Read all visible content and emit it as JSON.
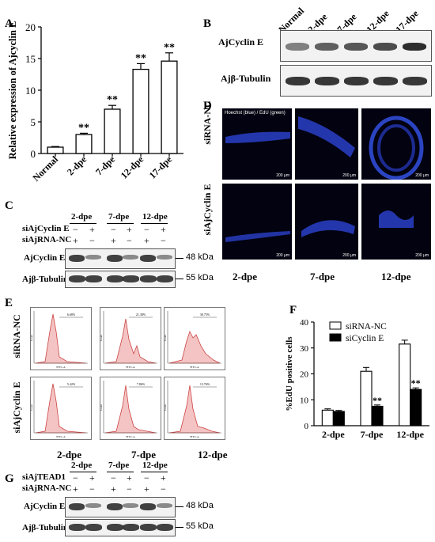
{
  "panels": {
    "A": "A",
    "B": "B",
    "C": "C",
    "D": "D",
    "E": "E",
    "F": "F",
    "G": "G"
  },
  "panelA": {
    "chart_data": {
      "type": "bar",
      "categories": [
        "Normal",
        "2-dpe",
        "7-dpe",
        "12-dpe",
        "17-dpe"
      ],
      "values": [
        1.0,
        3.0,
        7.0,
        13.3,
        14.6
      ],
      "errors": [
        0.1,
        0.2,
        0.6,
        0.9,
        1.3
      ],
      "significance": [
        "",
        "**",
        "**",
        "**",
        "**"
      ],
      "ylabel": "Relative expression of Ajcyclin E",
      "ylim": [
        0,
        20
      ],
      "yticks": [
        "0",
        "5",
        "10",
        "15",
        "20"
      ]
    }
  },
  "panelB": {
    "lanes": [
      "Normal",
      "2-dpe",
      "7-dpe",
      "12-dpe",
      "17-dpe"
    ],
    "rows": [
      "AjCyclin E",
      "Ajβ-Tubulin"
    ],
    "cyclin_intensity": [
      0.55,
      0.7,
      0.75,
      0.8,
      0.95
    ]
  },
  "panelC": {
    "groups": [
      "2-dpe",
      "7-dpe",
      "12-dpe"
    ],
    "row_labels": [
      "siAjCyclin E",
      "siAjRNA-NC"
    ],
    "row1_signs": [
      "−",
      "+",
      "−",
      "+",
      "−",
      "+"
    ],
    "row2_signs": [
      "+",
      "−",
      "+",
      "−",
      "+",
      "−"
    ],
    "blot_labels": [
      "AjCyclin E",
      "Ajβ-Tubulin"
    ],
    "kda": [
      "48 kDa",
      "55 kDa"
    ]
  },
  "panelD": {
    "header": "Hoechst (blue) / EdU (green)",
    "row_labels": [
      "siRNA-NC",
      "siAjCyclin E"
    ],
    "col_labels": [
      "2-dpe",
      "7-dpe",
      "12-dpe"
    ],
    "scale": "200 μm"
  },
  "panelE": {
    "row_labels": [
      "siRNA-NC",
      "siAjCyclin E"
    ],
    "col_labels": [
      "2-dpe",
      "7-dpe",
      "12-dpe"
    ],
    "gates": [
      [
        "6.68%",
        "21.38%",
        "30.75%"
      ],
      [
        "5.42%",
        "7.86%",
        "13.76%"
      ]
    ],
    "ylab": "Count",
    "xlab": "FITC-A"
  },
  "panelF": {
    "chart_data": {
      "type": "bar",
      "categories": [
        "2-dpe",
        "7-dpe",
        "12-dpe"
      ],
      "series": [
        {
          "name": "siRNA-NC",
          "values": [
            6.0,
            21.0,
            31.5
          ],
          "errors": [
            0.5,
            1.5,
            1.5
          ],
          "color": "#ffffff"
        },
        {
          "name": "siCyclin E",
          "values": [
            5.5,
            7.5,
            14.0
          ],
          "errors": [
            0.4,
            0.5,
            0.6
          ],
          "color": "#000000"
        }
      ],
      "significance": [
        "",
        "**",
        "**"
      ],
      "ylabel": "%EdU positive cells",
      "ylim": [
        0,
        40
      ],
      "yticks": [
        "0",
        "10",
        "20",
        "30",
        "40"
      ],
      "legend": "top-right"
    }
  },
  "panelG": {
    "groups": [
      "2-dpe",
      "7-dpe",
      "12-dpe"
    ],
    "row_labels": [
      "siAjTEAD1",
      "siAjRNA-NC"
    ],
    "row1_signs": [
      "−",
      "+",
      "−",
      "+",
      "−",
      "+"
    ],
    "row2_signs": [
      "+",
      "−",
      "+",
      "−",
      "+",
      "−"
    ],
    "blot_labels": [
      "AjCyclin E",
      "Ajβ-Tubulin"
    ],
    "kda": [
      "48 kDa",
      "55 kDa"
    ]
  }
}
